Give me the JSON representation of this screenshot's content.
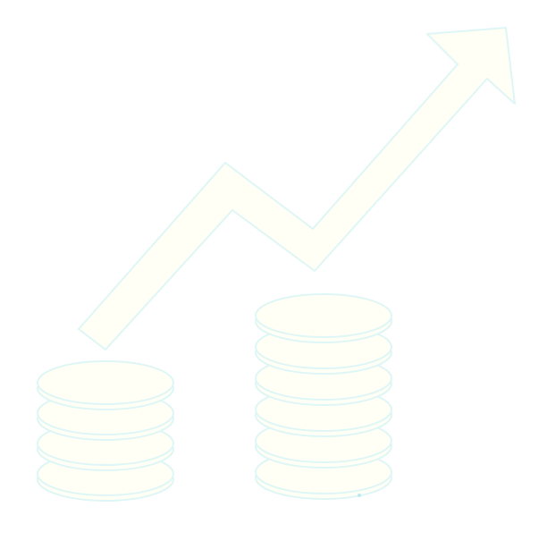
{
  "illustration": {
    "icon_name": "growth-coins-icon",
    "parts": {
      "arrow": "trend-arrow-icon",
      "left_stack": "coin-stack-icon",
      "right_stack": "coin-stack-icon"
    },
    "colors": {
      "background": "#ffffff",
      "fill": "#fffff6",
      "outline": "#dff6f6"
    },
    "coin_counts": {
      "left_stack": 4,
      "right_stack": 6
    }
  }
}
